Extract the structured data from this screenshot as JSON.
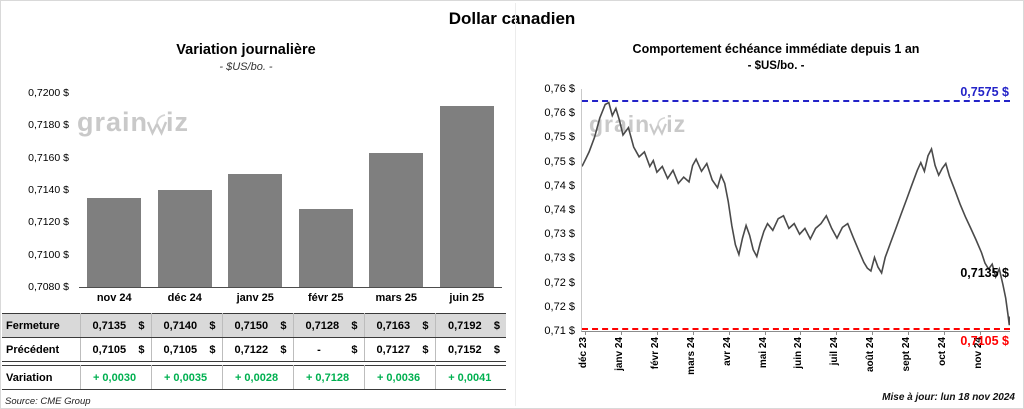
{
  "title": "Dollar canadien",
  "watermark": {
    "pre": "grain",
    "post": "iz"
  },
  "source": "Source: CME Group",
  "updated": "Mise à jour: lun 18 nov 2024",
  "colors": {
    "bar": "#7F7F7F",
    "table_row_bg": "#D9D9D9",
    "positive": "#00B050",
    "high_line": "#2323C8",
    "low_line": "#FF0000",
    "series_line": "#4A4A4A"
  },
  "table": {
    "rows": [
      {
        "label": "Fermeture",
        "cells": [
          "0,7135    $",
          "0,7140    $",
          "0,7150    $",
          "0,7128    $",
          "0,7163    $",
          "0,7192    $"
        ]
      },
      {
        "label": "Précédent",
        "cells": [
          "0,7105    $",
          "0,7105    $",
          "0,7122    $",
          "-          $",
          "0,7127    $",
          "0,7152    $"
        ]
      },
      {
        "label": "Variation",
        "cells": [
          "+ 0,0030",
          "+ 0,0035",
          "+ 0,0028",
          "+ 0,7128",
          "+ 0,0036",
          "+ 0,0041"
        ]
      }
    ]
  },
  "chart_data": [
    {
      "type": "bar",
      "title": "Variation journalière",
      "subtitle": "- $US/bo. -",
      "categories": [
        "nov 24",
        "déc 24",
        "janv 25",
        "févr 25",
        "mars 25",
        "juin 25"
      ],
      "values": [
        0.7135,
        0.714,
        0.715,
        0.7128,
        0.7163,
        0.7192
      ],
      "ylabel": "$US/bo.",
      "ylim": [
        0.708,
        0.72
      ],
      "y_tick_labels": [
        "0,7200 $",
        "0,7180 $",
        "0,7160 $",
        "0,7140 $",
        "0,7120 $",
        "0,7100 $",
        "0,7080 $"
      ],
      "grid": false,
      "legend": false
    },
    {
      "type": "line",
      "title": "Comportement échéance immédiate depuis 1 an",
      "subtitle": "- $US/bo. -",
      "ylim": [
        0.71,
        0.76
      ],
      "y_tick_labels": [
        "0,76 $",
        "0,76 $",
        "0,75 $",
        "0,75 $",
        "0,74 $",
        "0,74 $",
        "0,73 $",
        "0,73 $",
        "0,72 $",
        "0,72 $",
        "0,71 $"
      ],
      "x_tick_labels": [
        "déc 23",
        "janv 24",
        "févr 24",
        "mars 24",
        "avr 24",
        "mai 24",
        "juin 24",
        "juil 24",
        "août 24",
        "sept 24",
        "oct 24",
        "nov 24"
      ],
      "xlim_months": [
        0,
        12
      ],
      "grid": false,
      "legend": false,
      "reference_lines": [
        {
          "label": "0,7575 $",
          "value": 0.7575,
          "color_key": "high_line",
          "style": "dashed"
        },
        {
          "label": "0,7105 $",
          "value": 0.7105,
          "color_key": "low_line",
          "style": "dashed"
        }
      ],
      "last_value_label": "0,7135 $",
      "series": [
        {
          "name": "$US/bo.",
          "points": [
            [
              0.0,
              0.744
            ],
            [
              0.1,
              0.7455
            ],
            [
              0.2,
              0.747
            ],
            [
              0.35,
              0.75
            ],
            [
              0.5,
              0.754
            ],
            [
              0.65,
              0.7568
            ],
            [
              0.75,
              0.7572
            ],
            [
              0.85,
              0.7545
            ],
            [
              0.95,
              0.756
            ],
            [
              1.05,
              0.7535
            ],
            [
              1.15,
              0.7505
            ],
            [
              1.3,
              0.752
            ],
            [
              1.45,
              0.748
            ],
            [
              1.6,
              0.746
            ],
            [
              1.75,
              0.747
            ],
            [
              1.9,
              0.744
            ],
            [
              2.0,
              0.7452
            ],
            [
              2.1,
              0.7428
            ],
            [
              2.25,
              0.744
            ],
            [
              2.4,
              0.7415
            ],
            [
              2.55,
              0.7432
            ],
            [
              2.7,
              0.7405
            ],
            [
              2.85,
              0.7418
            ],
            [
              3.0,
              0.7408
            ],
            [
              3.1,
              0.7442
            ],
            [
              3.2,
              0.7455
            ],
            [
              3.35,
              0.743
            ],
            [
              3.5,
              0.7446
            ],
            [
              3.65,
              0.7412
            ],
            [
              3.8,
              0.7396
            ],
            [
              3.9,
              0.7422
            ],
            [
              4.0,
              0.7405
            ],
            [
              4.1,
              0.7368
            ],
            [
              4.2,
              0.7318
            ],
            [
              4.3,
              0.7278
            ],
            [
              4.4,
              0.7258
            ],
            [
              4.5,
              0.7292
            ],
            [
              4.6,
              0.7318
            ],
            [
              4.7,
              0.7298
            ],
            [
              4.8,
              0.7268
            ],
            [
              4.9,
              0.7254
            ],
            [
              5.0,
              0.7282
            ],
            [
              5.1,
              0.7306
            ],
            [
              5.2,
              0.7322
            ],
            [
              5.35,
              0.7308
            ],
            [
              5.5,
              0.7332
            ],
            [
              5.65,
              0.7338
            ],
            [
              5.8,
              0.7312
            ],
            [
              5.95,
              0.7322
            ],
            [
              6.1,
              0.73
            ],
            [
              6.25,
              0.7312
            ],
            [
              6.4,
              0.729
            ],
            [
              6.55,
              0.7312
            ],
            [
              6.7,
              0.7322
            ],
            [
              6.85,
              0.7338
            ],
            [
              7.0,
              0.7312
            ],
            [
              7.15,
              0.7292
            ],
            [
              7.3,
              0.7314
            ],
            [
              7.45,
              0.7322
            ],
            [
              7.6,
              0.7294
            ],
            [
              7.75,
              0.7268
            ],
            [
              7.9,
              0.7242
            ],
            [
              8.0,
              0.723
            ],
            [
              8.1,
              0.7224
            ],
            [
              8.2,
              0.7252
            ],
            [
              8.3,
              0.7232
            ],
            [
              8.4,
              0.722
            ],
            [
              8.5,
              0.7252
            ],
            [
              8.65,
              0.7282
            ],
            [
              8.8,
              0.7312
            ],
            [
              8.95,
              0.7342
            ],
            [
              9.1,
              0.7372
            ],
            [
              9.25,
              0.7402
            ],
            [
              9.4,
              0.7432
            ],
            [
              9.5,
              0.7448
            ],
            [
              9.6,
              0.743
            ],
            [
              9.7,
              0.7462
            ],
            [
              9.8,
              0.7476
            ],
            [
              9.9,
              0.7442
            ],
            [
              10.0,
              0.7422
            ],
            [
              10.1,
              0.7436
            ],
            [
              10.2,
              0.7446
            ],
            [
              10.3,
              0.742
            ],
            [
              10.45,
              0.7392
            ],
            [
              10.6,
              0.7362
            ],
            [
              10.75,
              0.7336
            ],
            [
              10.9,
              0.7312
            ],
            [
              11.05,
              0.7288
            ],
            [
              11.2,
              0.7262
            ],
            [
              11.3,
              0.724
            ],
            [
              11.4,
              0.7228
            ],
            [
              11.5,
              0.7238
            ],
            [
              11.6,
              0.7212
            ],
            [
              11.7,
              0.7228
            ],
            [
              11.8,
              0.7196
            ],
            [
              11.88,
              0.7168
            ],
            [
              11.94,
              0.7135
            ],
            [
              11.98,
              0.7112
            ],
            [
              12.0,
              0.713
            ]
          ]
        }
      ]
    }
  ]
}
